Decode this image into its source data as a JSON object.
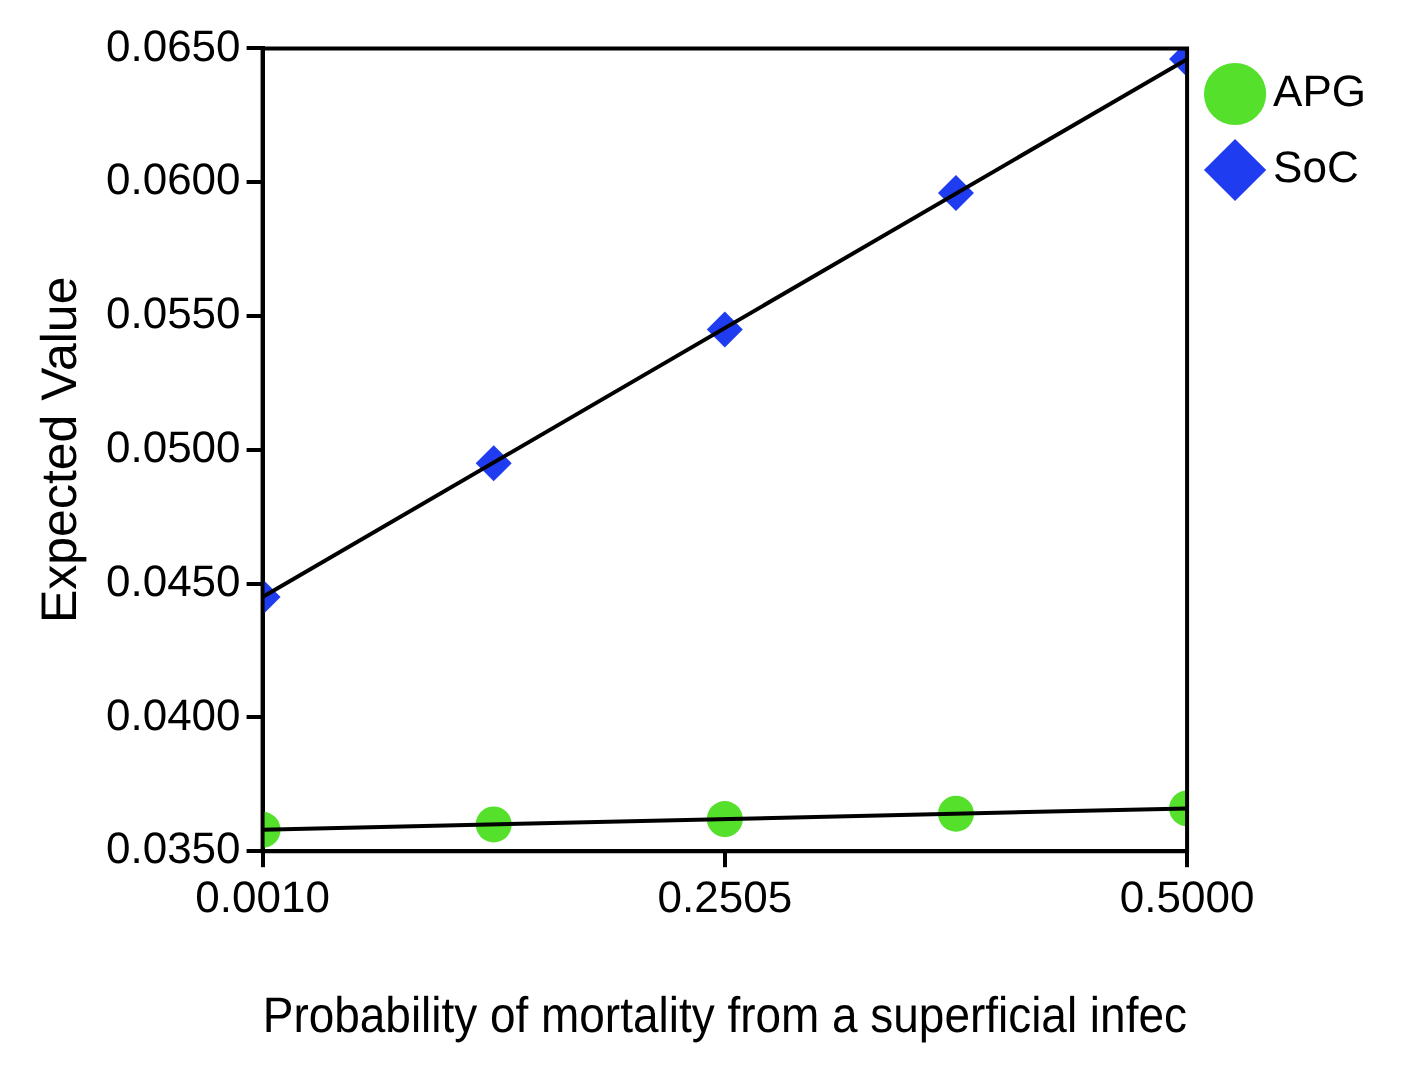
{
  "chart_data": {
    "type": "scatter",
    "xlabel": "Probability of mortality from a superficial infec",
    "ylabel": "Expected Value",
    "xlim": [
      0.001,
      0.5
    ],
    "xticks": [
      {
        "value": 0.001,
        "label": "0.0010"
      },
      {
        "value": 0.2505,
        "label": "0.2505"
      },
      {
        "value": 0.5,
        "label": "0.5000"
      }
    ],
    "ylim": [
      0.035,
      0.065
    ],
    "yticks": [
      {
        "value": 0.035,
        "label": "0.0350"
      },
      {
        "value": 0.04,
        "label": "0.0400"
      },
      {
        "value": 0.045,
        "label": "0.0450"
      },
      {
        "value": 0.05,
        "label": "0.0500"
      },
      {
        "value": 0.055,
        "label": "0.0550"
      },
      {
        "value": 0.06,
        "label": "0.0600"
      },
      {
        "value": 0.065,
        "label": "0.0650"
      }
    ],
    "grid": false,
    "legend": "top right",
    "series": [
      {
        "type": "line",
        "color": "#000000",
        "marker": "none",
        "x": [
          0.001,
          0.5
        ],
        "values": [
          0.0358,
          0.0366
        ]
      },
      {
        "type": "line",
        "color": "#000000",
        "marker": "none",
        "x": [
          0.001,
          0.5
        ],
        "values": [
          0.0445,
          0.0646
        ]
      },
      {
        "name": "APG",
        "type": "scatter",
        "color": "#55e02c",
        "marker": "circle",
        "x": [
          0.001,
          0.12575,
          0.2505,
          0.37525,
          0.5
        ],
        "values": [
          0.0358,
          0.036,
          0.0362,
          0.0364,
          0.0366
        ]
      },
      {
        "name": "SoC",
        "type": "scatter",
        "color": "#1f3cf0",
        "marker": "diamond",
        "x": [
          0.001,
          0.12575,
          0.2505,
          0.37525,
          0.5
        ],
        "values": [
          0.0445,
          0.0495,
          0.0545,
          0.0596,
          0.0646
        ]
      }
    ]
  }
}
